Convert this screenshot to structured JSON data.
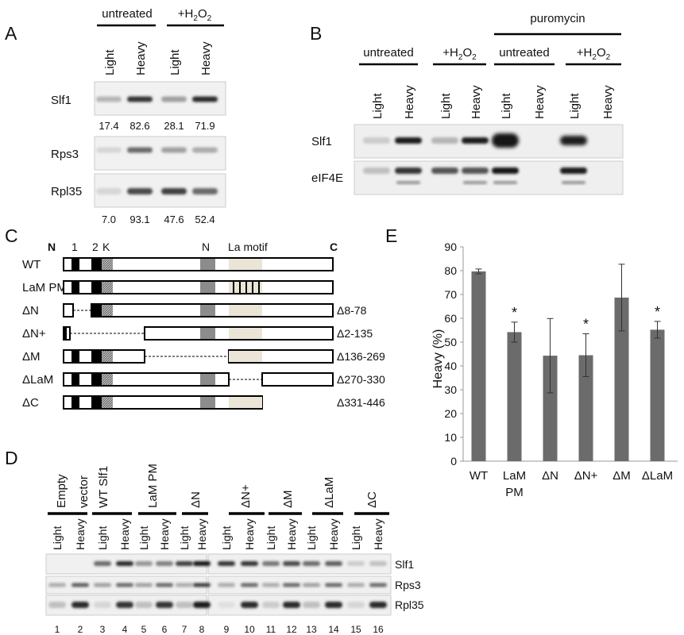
{
  "panelA": {
    "letter": "A",
    "group_untreated": "untreated",
    "group_h2o2_prefix": "+H",
    "group_h2o2_sub": "2",
    "group_h2o2_o": "O",
    "group_h2o2_sub2": "2",
    "lanes": [
      "Light",
      "Heavy",
      "Light",
      "Heavy"
    ],
    "blots": [
      "Slf1",
      "Rps3",
      "Rpl35"
    ],
    "slf1_values": [
      "17.4",
      "82.6",
      "28.1",
      "71.9"
    ],
    "rpl35_values": [
      "7.0",
      "93.1",
      "47.6",
      "52.4"
    ]
  },
  "panelB": {
    "letter": "B",
    "puromycin": "puromycin",
    "groups": [
      "untreated",
      "+H2O2",
      "untreated",
      "+H2O2"
    ],
    "lanes": [
      "Light",
      "Heavy",
      "Light",
      "Heavy",
      "Light",
      "Heavy",
      "Light",
      "Heavy"
    ],
    "blots": [
      "Slf1",
      "eIF4E"
    ]
  },
  "panelC": {
    "letter": "C",
    "n_term": "N",
    "c_term": "C",
    "domain_1": "1",
    "domain_2": "2",
    "domain_k": "K",
    "domain_n": "N",
    "domain_la": "La motif",
    "constructs": [
      {
        "name": "WT",
        "deletion": ""
      },
      {
        "name": "LaM PM",
        "deletion": ""
      },
      {
        "name": "ΔN",
        "deletion": "Δ8-78"
      },
      {
        "name": "ΔN+",
        "deletion": "Δ2-135"
      },
      {
        "name": "ΔM",
        "deletion": "Δ136-269"
      },
      {
        "name": "ΔLaM",
        "deletion": "Δ270-330"
      },
      {
        "name": "ΔC",
        "deletion": "Δ331-446"
      }
    ]
  },
  "panelD": {
    "letter": "D",
    "groups": [
      "Empty vector",
      "WT Slf1",
      "LaM PM",
      "ΔN",
      "ΔN+",
      "ΔM",
      "ΔLaM",
      "ΔC"
    ],
    "lanes": [
      "Light",
      "Heavy"
    ],
    "blots": [
      "Slf1",
      "Rps3",
      "Rpl35"
    ],
    "lane_numbers": [
      "1",
      "2",
      "3",
      "4",
      "5",
      "6",
      "7",
      "8",
      "9",
      "10",
      "11",
      "12",
      "13",
      "14",
      "15",
      "16"
    ]
  },
  "panelE": {
    "letter": "E",
    "colors": {
      "bar": "#6b6b6b",
      "error": "#333333"
    }
  },
  "chart_data": {
    "type": "bar",
    "categories": [
      "WT",
      "LaM PM",
      "ΔN",
      "ΔN+",
      "ΔM",
      "ΔLaM"
    ],
    "values": [
      79.7,
      54.2,
      44.3,
      44.5,
      68.7,
      55.2
    ],
    "errors": [
      1.0,
      4.2,
      15.6,
      9.0,
      14.0,
      3.5
    ],
    "significant": [
      false,
      true,
      false,
      true,
      false,
      true
    ],
    "significance_marker": "*",
    "ylabel": "Heavy (%)",
    "xlabel": "",
    "ylim": [
      0,
      90
    ],
    "yticks": [
      0,
      10,
      20,
      30,
      40,
      50,
      60,
      70,
      80,
      90
    ],
    "grid": false
  }
}
